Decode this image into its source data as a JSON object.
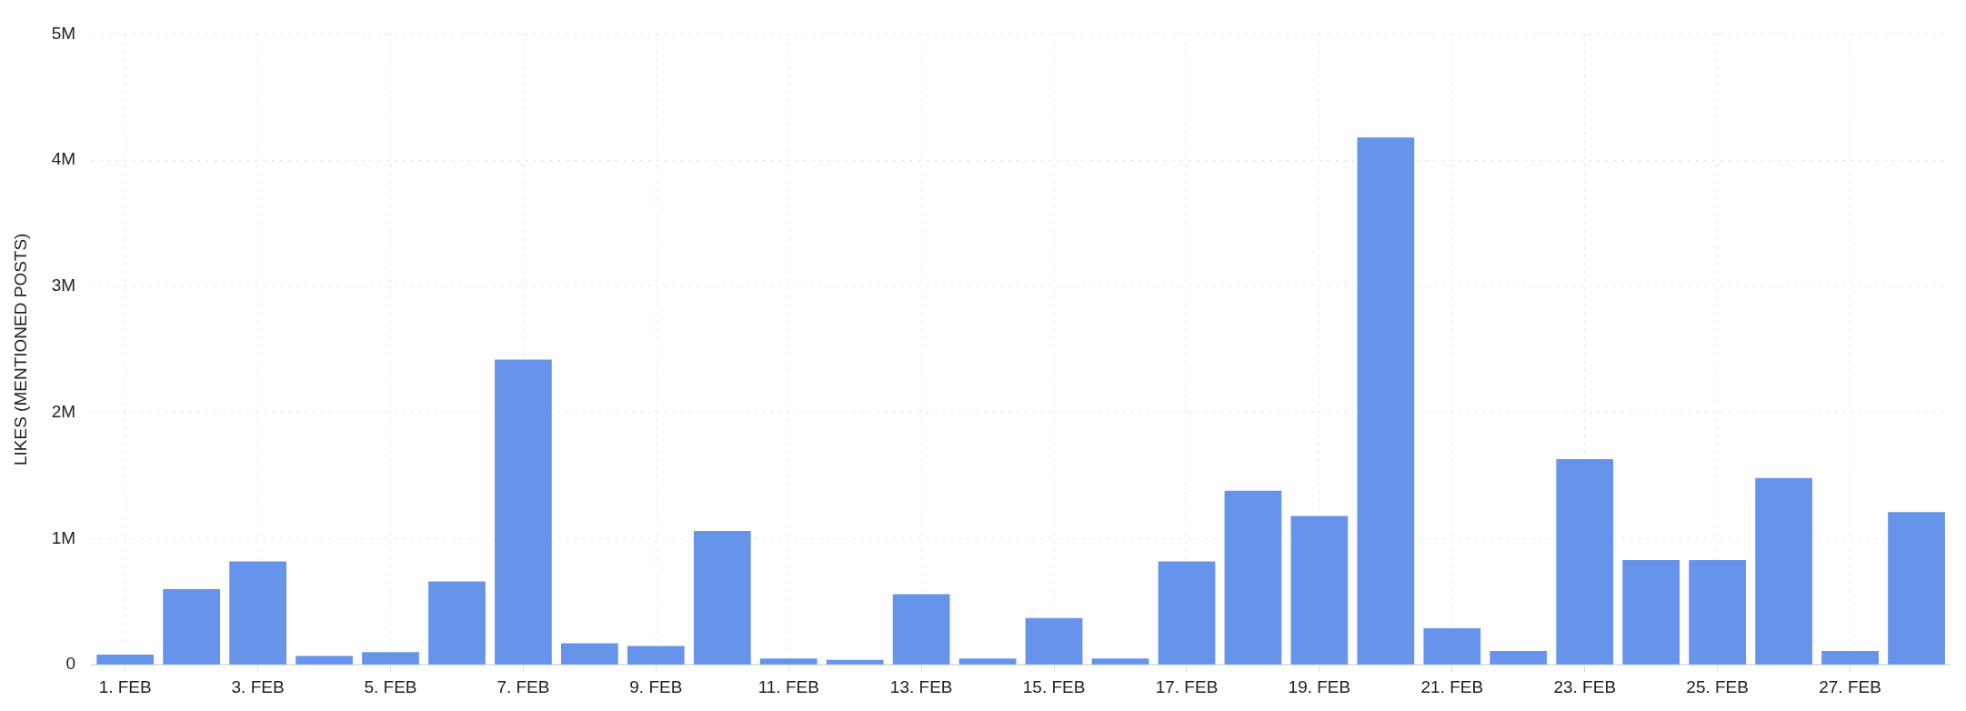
{
  "chart_data": {
    "type": "bar",
    "ylabel": "LIKES (MENTIONED POSTS)",
    "categories": [
      "1. FEB",
      null,
      "3. FEB",
      null,
      "5. FEB",
      null,
      "7. FEB",
      null,
      "9. FEB",
      null,
      "11. FEB",
      null,
      "13. FEB",
      null,
      "15. FEB",
      null,
      "17. FEB",
      null,
      "19. FEB",
      null,
      "21. FEB",
      null,
      "23. FEB",
      null,
      "25. FEB",
      null,
      "27. FEB",
      null
    ],
    "values": [
      80000,
      600000,
      820000,
      70000,
      100000,
      660000,
      2420000,
      170000,
      150000,
      1060000,
      50000,
      40000,
      560000,
      50000,
      370000,
      50000,
      820000,
      1380000,
      1180000,
      4180000,
      290000,
      110000,
      1630000,
      830000,
      830000,
      1480000,
      110000,
      1210000
    ],
    "color": "#6694ea",
    "ylim": [
      0,
      5000000
    ],
    "yticks": [
      {
        "value": 0,
        "label": "0"
      },
      {
        "value": 1000000,
        "label": "1M"
      },
      {
        "value": 2000000,
        "label": "2M"
      },
      {
        "value": 3000000,
        "label": "3M"
      },
      {
        "value": 4000000,
        "label": "4M"
      },
      {
        "value": 5000000,
        "label": "5M"
      }
    ],
    "grid": true,
    "legend": false
  }
}
